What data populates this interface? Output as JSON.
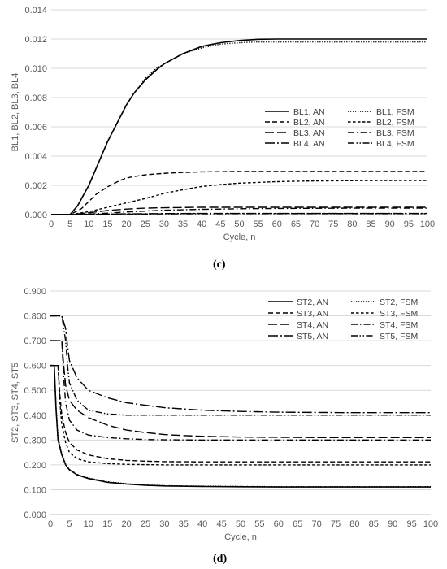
{
  "chart_data": [
    {
      "type": "line",
      "panel_label": "(c)",
      "xlabel": "Cycle, n",
      "ylabel": "BL1, BL2, BL3, BL4",
      "xlim": [
        0,
        100
      ],
      "ylim": [
        0,
        0.014
      ],
      "x_ticks": [
        0,
        5,
        10,
        15,
        20,
        25,
        30,
        35,
        40,
        45,
        50,
        55,
        60,
        65,
        70,
        75,
        80,
        85,
        90,
        95,
        100
      ],
      "y_ticks": [
        "0.000",
        "0.002",
        "0.004",
        "0.006",
        "0.008",
        "0.010",
        "0.012",
        "0.014"
      ],
      "grid": "horizontal",
      "legend_position": "center-right",
      "legend_columns": 2,
      "series": [
        {
          "name": "BL1, AN",
          "style": "solid",
          "x": [
            0,
            3,
            5,
            7,
            10,
            12,
            15,
            18,
            20,
            22,
            25,
            28,
            30,
            35,
            40,
            45,
            50,
            55,
            60,
            70,
            80,
            90,
            100
          ],
          "y": [
            0,
            0,
            0,
            0.0006,
            0.002,
            0.0032,
            0.005,
            0.0065,
            0.0075,
            0.0083,
            0.0092,
            0.0099,
            0.0103,
            0.011,
            0.0115,
            0.01175,
            0.0119,
            0.01198,
            0.012,
            0.012,
            0.012,
            0.012,
            0.012
          ]
        },
        {
          "name": "BL1, FSM",
          "style": "dotted",
          "x": [
            0,
            3,
            5,
            7,
            10,
            12,
            15,
            18,
            20,
            22,
            25,
            28,
            30,
            35,
            40,
            45,
            50,
            55,
            60,
            70,
            80,
            90,
            100
          ],
          "y": [
            0,
            0,
            0,
            0.0006,
            0.002,
            0.0032,
            0.005,
            0.0065,
            0.0075,
            0.0083,
            0.0093,
            0.01,
            0.0103,
            0.011,
            0.0114,
            0.01165,
            0.01175,
            0.0118,
            0.0118,
            0.0118,
            0.0118,
            0.0118,
            0.0118
          ]
        },
        {
          "name": "BL2, AN",
          "style": "dash",
          "x": [
            0,
            3,
            5,
            8,
            10,
            12,
            15,
            18,
            20,
            22,
            25,
            30,
            35,
            40,
            50,
            60,
            70,
            80,
            90,
            100
          ],
          "y": [
            0,
            0,
            0,
            0.0004,
            0.0009,
            0.0014,
            0.0019,
            0.0023,
            0.0025,
            0.0026,
            0.00272,
            0.00282,
            0.00288,
            0.00292,
            0.00295,
            0.00295,
            0.00295,
            0.00295,
            0.00295,
            0.00295
          ]
        },
        {
          "name": "BL2, FSM",
          "style": "shortdash",
          "x": [
            0,
            5,
            10,
            15,
            20,
            25,
            30,
            35,
            40,
            45,
            50,
            55,
            60,
            65,
            70,
            80,
            90,
            100
          ],
          "y": [
            0,
            0,
            0.0002,
            0.0005,
            0.0008,
            0.0011,
            0.00145,
            0.0017,
            0.00192,
            0.00205,
            0.00215,
            0.0022,
            0.00225,
            0.00228,
            0.0023,
            0.00232,
            0.00233,
            0.00233
          ]
        },
        {
          "name": "BL3, AN",
          "style": "longdash",
          "x": [
            0,
            5,
            10,
            15,
            20,
            25,
            30,
            40,
            50,
            60,
            70,
            80,
            90,
            100
          ],
          "y": [
            0,
            0,
            0.00012,
            0.00028,
            0.00038,
            0.00044,
            0.00047,
            0.0005,
            0.0005,
            0.0005,
            0.0005,
            0.0005,
            0.0005,
            0.0005
          ]
        },
        {
          "name": "BL3, FSM",
          "style": "dashdot",
          "x": [
            0,
            5,
            10,
            15,
            20,
            25,
            30,
            40,
            50,
            60,
            70,
            80,
            90,
            100
          ],
          "y": [
            0,
            0,
            4e-05,
            0.0001,
            0.00018,
            0.00024,
            0.0003,
            0.00036,
            0.0004,
            0.00042,
            0.00043,
            0.00044,
            0.00044,
            0.00044
          ]
        },
        {
          "name": "BL4, AN",
          "style": "dashdot2",
          "x": [
            0,
            5,
            10,
            20,
            30,
            40,
            60,
            80,
            100
          ],
          "y": [
            0,
            0,
            2e-05,
            5e-05,
            7e-05,
            8e-05,
            8e-05,
            8e-05,
            8e-05
          ]
        },
        {
          "name": "BL4, FSM",
          "style": "dashdotdot",
          "x": [
            0,
            5,
            10,
            20,
            30,
            40,
            60,
            80,
            100
          ],
          "y": [
            0,
            0,
            1e-05,
            3e-05,
            5e-05,
            6e-05,
            7e-05,
            7e-05,
            7e-05
          ]
        }
      ]
    },
    {
      "type": "line",
      "panel_label": "(d)",
      "xlabel": "Cycle, n",
      "ylabel": "ST2, ST3, ST4, ST5",
      "xlim": [
        0,
        100
      ],
      "ylim": [
        0,
        0.9
      ],
      "x_ticks": [
        0,
        5,
        10,
        15,
        20,
        25,
        30,
        35,
        40,
        45,
        50,
        55,
        60,
        65,
        70,
        75,
        80,
        85,
        90,
        95,
        100
      ],
      "y_ticks": [
        "0.000",
        "0.100",
        "0.200",
        "0.300",
        "0.400",
        "0.500",
        "0.600",
        "0.700",
        "0.800",
        "0.900"
      ],
      "grid": "horizontal",
      "legend_position": "top-right",
      "legend_columns": 2,
      "series": [
        {
          "name": "ST2, AN",
          "style": "solid",
          "x": [
            0,
            1,
            1.5,
            2,
            3,
            4,
            5,
            7,
            10,
            15,
            20,
            25,
            30,
            40,
            50,
            60,
            70,
            80,
            90,
            100
          ],
          "y": [
            0.6,
            0.6,
            0.42,
            0.3,
            0.24,
            0.2,
            0.18,
            0.16,
            0.145,
            0.13,
            0.123,
            0.118,
            0.115,
            0.113,
            0.112,
            0.111,
            0.111,
            0.111,
            0.111,
            0.111
          ]
        },
        {
          "name": "ST2, FSM",
          "style": "dotted",
          "x": [
            0,
            1,
            1.5,
            2,
            3,
            4,
            5,
            7,
            10,
            15,
            20,
            25,
            30,
            40,
            50,
            60,
            70,
            80,
            90,
            100
          ],
          "y": [
            0.6,
            0.6,
            0.43,
            0.31,
            0.245,
            0.205,
            0.182,
            0.162,
            0.147,
            0.132,
            0.124,
            0.119,
            0.116,
            0.114,
            0.113,
            0.112,
            0.112,
            0.112,
            0.112,
            0.112
          ]
        },
        {
          "name": "ST3, AN",
          "style": "dash",
          "x": [
            0,
            1,
            2,
            2.5,
            3,
            4,
            5,
            7,
            10,
            15,
            20,
            25,
            30,
            40,
            50,
            60,
            70,
            80,
            90,
            100
          ],
          "y": [
            0.6,
            0.6,
            0.6,
            0.48,
            0.4,
            0.33,
            0.29,
            0.26,
            0.24,
            0.225,
            0.218,
            0.215,
            0.213,
            0.212,
            0.212,
            0.212,
            0.212,
            0.212,
            0.212,
            0.212
          ]
        },
        {
          "name": "ST3, FSM",
          "style": "shortdash",
          "x": [
            0,
            1,
            2,
            2.5,
            3,
            4,
            5,
            7,
            10,
            15,
            20,
            25,
            30,
            40,
            50,
            60,
            70,
            80,
            90,
            100
          ],
          "y": [
            0.6,
            0.6,
            0.6,
            0.45,
            0.36,
            0.29,
            0.25,
            0.225,
            0.212,
            0.205,
            0.202,
            0.201,
            0.2,
            0.2,
            0.2,
            0.2,
            0.2,
            0.2,
            0.2,
            0.2
          ]
        },
        {
          "name": "ST4, AN",
          "style": "longdash",
          "x": [
            0,
            1,
            2,
            3,
            3.5,
            4,
            5,
            7,
            10,
            15,
            20,
            25,
            30,
            35,
            40,
            50,
            60,
            70,
            80,
            90,
            100
          ],
          "y": [
            0.7,
            0.7,
            0.7,
            0.7,
            0.6,
            0.52,
            0.46,
            0.42,
            0.39,
            0.36,
            0.34,
            0.33,
            0.322,
            0.318,
            0.315,
            0.312,
            0.311,
            0.31,
            0.31,
            0.31,
            0.31
          ]
        },
        {
          "name": "ST4, FSM",
          "style": "dashdot",
          "x": [
            0,
            1,
            2,
            3,
            3.5,
            4,
            5,
            7,
            10,
            15,
            20,
            25,
            30,
            40,
            50,
            60,
            70,
            80,
            90,
            100
          ],
          "y": [
            0.7,
            0.7,
            0.7,
            0.7,
            0.55,
            0.45,
            0.38,
            0.34,
            0.32,
            0.31,
            0.305,
            0.302,
            0.301,
            0.3,
            0.3,
            0.3,
            0.3,
            0.3,
            0.3,
            0.3
          ]
        },
        {
          "name": "ST5, AN",
          "style": "dashdot2",
          "x": [
            0,
            1,
            2,
            3,
            4,
            4.5,
            5,
            7,
            10,
            15,
            20,
            25,
            30,
            35,
            40,
            50,
            60,
            70,
            80,
            90,
            100
          ],
          "y": [
            0.8,
            0.8,
            0.8,
            0.8,
            0.75,
            0.68,
            0.62,
            0.55,
            0.5,
            0.47,
            0.45,
            0.44,
            0.43,
            0.425,
            0.42,
            0.415,
            0.412,
            0.411,
            0.41,
            0.41,
            0.41
          ]
        },
        {
          "name": "ST5, FSM",
          "style": "dashdotdot",
          "x": [
            0,
            1,
            2,
            3,
            4,
            4.5,
            5,
            7,
            10,
            15,
            20,
            25,
            30,
            40,
            50,
            60,
            70,
            80,
            90,
            100
          ],
          "y": [
            0.8,
            0.8,
            0.8,
            0.8,
            0.7,
            0.6,
            0.53,
            0.46,
            0.42,
            0.405,
            0.4,
            0.4,
            0.4,
            0.4,
            0.4,
            0.4,
            0.4,
            0.4,
            0.4,
            0.4
          ]
        }
      ]
    }
  ]
}
